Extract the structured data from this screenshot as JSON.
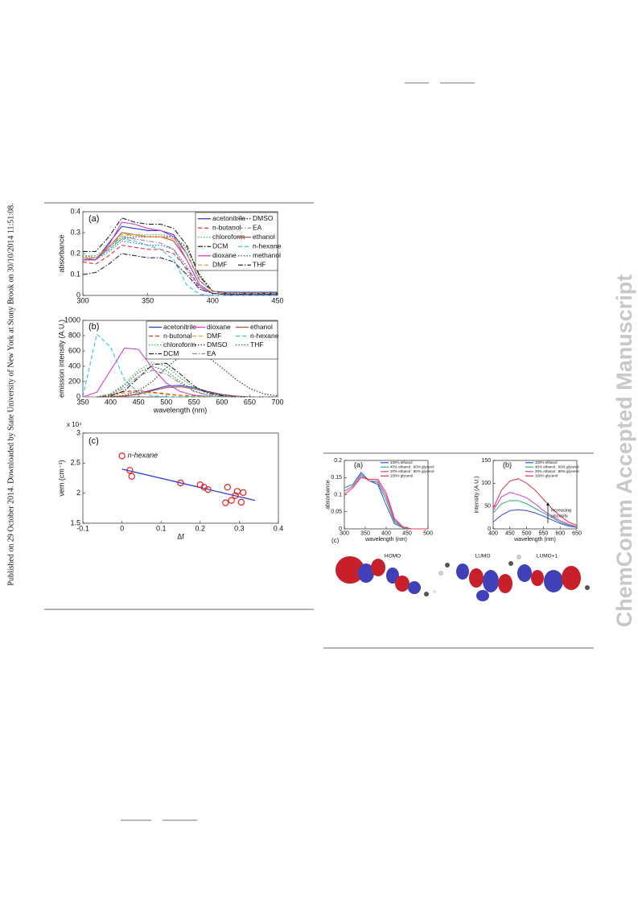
{
  "sidebar": "Published on 29 October 2014. Downloaded by State University of New York at Stony Brook on 30/10/2014 11:51:08.",
  "watermark": "ChemComm Accepted Manuscript",
  "figure1": {
    "panels": [
      {
        "type": "line",
        "label": "(a)",
        "ylabel": "absorbance",
        "xlim": [
          300,
          450
        ],
        "ylim": [
          0,
          0.4
        ],
        "xticks": [
          300,
          350,
          400,
          450
        ],
        "yticks": [
          0,
          0.1,
          0.2,
          0.3,
          0.4
        ],
        "x": [
          300,
          310,
          320,
          330,
          340,
          350,
          360,
          370,
          380,
          390,
          400,
          410,
          420,
          430,
          440,
          450
        ],
        "series": [
          {
            "name": "acetonitrile",
            "color": "#2a3bd6",
            "style": "solid",
            "values": [
              0.17,
              0.17,
              0.25,
              0.33,
              0.32,
              0.31,
              0.31,
              0.29,
              0.2,
              0.07,
              0.02,
              0.015,
              0.015,
              0.015,
              0.015,
              0.015
            ]
          },
          {
            "name": "DMSO",
            "color": "#333333",
            "style": "dotted",
            "values": [
              0.19,
              0.18,
              0.22,
              0.27,
              0.28,
              0.28,
              0.28,
              0.28,
              0.23,
              0.1,
              0.02,
              0.01,
              0.01,
              0.01,
              0.01,
              0.01
            ]
          },
          {
            "name": "n-butanol",
            "color": "#e03030",
            "style": "dashed",
            "values": [
              0.16,
              0.15,
              0.19,
              0.24,
              0.23,
              0.22,
              0.22,
              0.2,
              0.13,
              0.04,
              0.01,
              0.005,
              0.005,
              0.005,
              0.005,
              0.005
            ]
          },
          {
            "name": "EA",
            "color": "#8a8a9a",
            "style": "dashdot",
            "values": [
              0.18,
              0.18,
              0.23,
              0.28,
              0.27,
              0.26,
              0.25,
              0.22,
              0.12,
              0.03,
              0.01,
              0.005,
              0.005,
              0.005,
              0.005,
              0.005
            ]
          },
          {
            "name": "chloroform",
            "color": "#3cb44b",
            "style": "dotted",
            "values": [
              0.19,
              0.19,
              0.23,
              0.28,
              0.29,
              0.29,
              0.29,
              0.28,
              0.22,
              0.09,
              0.02,
              0.01,
              0.01,
              0.01,
              0.01,
              0.01
            ]
          },
          {
            "name": "ethanol",
            "color": "#b5534a",
            "style": "solid",
            "values": [
              0.18,
              0.17,
              0.23,
              0.3,
              0.29,
              0.28,
              0.28,
              0.26,
              0.17,
              0.05,
              0.01,
              0.005,
              0.005,
              0.005,
              0.005,
              0.005
            ]
          },
          {
            "name": "DCM",
            "color": "#222222",
            "style": "dashdot",
            "values": [
              0.21,
              0.21,
              0.28,
              0.37,
              0.35,
              0.34,
              0.34,
              0.32,
              0.24,
              0.09,
              0.02,
              0.01,
              0.01,
              0.01,
              0.01,
              0.01
            ]
          },
          {
            "name": "n-hexane",
            "color": "#30c8d0",
            "style": "dashed",
            "values": [
              0.17,
              0.17,
              0.22,
              0.27,
              0.26,
              0.24,
              0.22,
              0.17,
              0.05,
              0.005,
              0,
              0,
              0,
              0,
              0,
              0
            ]
          },
          {
            "name": "dioxane",
            "color": "#d63cd0",
            "style": "solid",
            "values": [
              0.17,
              0.17,
              0.24,
              0.35,
              0.34,
              0.32,
              0.31,
              0.28,
              0.17,
              0.05,
              0.01,
              0.005,
              0.005,
              0.005,
              0.005,
              0.005
            ]
          },
          {
            "name": "methanol",
            "color": "#3060d0",
            "style": "dotted",
            "values": [
              0.17,
              0.17,
              0.21,
              0.26,
              0.25,
              0.24,
              0.24,
              0.22,
              0.14,
              0.04,
              0.01,
              0.005,
              0.005,
              0.005,
              0.005,
              0.005
            ]
          },
          {
            "name": "DMF",
            "color": "#f0a020",
            "style": "dashed",
            "values": [
              0.18,
              0.18,
              0.23,
              0.29,
              0.29,
              0.28,
              0.28,
              0.27,
              0.2,
              0.07,
              0.02,
              0.01,
              0.01,
              0.01,
              0.01,
              0.01
            ]
          },
          {
            "name": "THF",
            "color": "#2a2a50",
            "style": "dashdot",
            "values": [
              0.1,
              0.11,
              0.15,
              0.2,
              0.19,
              0.18,
              0.18,
              0.16,
              0.1,
              0.03,
              0.01,
              0.005,
              0.005,
              0.005,
              0.005,
              0.005
            ]
          }
        ]
      },
      {
        "type": "line",
        "label": "(b)",
        "xlabel": "wavelength (nm)",
        "ylabel": "emission intensity (A.U.)",
        "xlim": [
          350,
          700
        ],
        "ylim": [
          0,
          1000
        ],
        "xticks": [
          350,
          400,
          450,
          500,
          550,
          600,
          650,
          700
        ],
        "yticks": [
          0,
          200,
          400,
          600,
          800,
          1000
        ],
        "x": [
          350,
          375,
          400,
          425,
          450,
          475,
          500,
          525,
          550,
          575,
          600,
          625,
          650,
          675,
          700
        ],
        "series": [
          {
            "name": "acetonitrile",
            "color": "#2a3bd6",
            "style": "solid",
            "values": [
              0,
              0,
              0,
              10,
              40,
              90,
              140,
              150,
              120,
              70,
              30,
              10,
              0,
              0,
              0
            ]
          },
          {
            "name": "dioxane",
            "color": "#d63cd0",
            "style": "solid",
            "values": [
              0,
              60,
              350,
              640,
              620,
              380,
              180,
              70,
              20,
              5,
              0,
              0,
              0,
              0,
              0
            ]
          },
          {
            "name": "ethanol",
            "color": "#b5534a",
            "style": "solid",
            "values": [
              0,
              0,
              0,
              10,
              35,
              80,
              120,
              130,
              105,
              60,
              25,
              8,
              0,
              0,
              0
            ]
          },
          {
            "name": "n-butonal",
            "color": "#e03030",
            "style": "dashed",
            "values": [
              0,
              0,
              30,
              70,
              80,
              60,
              40,
              20,
              10,
              0,
              0,
              0,
              0,
              0,
              0
            ]
          },
          {
            "name": "DMF",
            "color": "#f0a020",
            "style": "dashed",
            "values": [
              0,
              0,
              20,
              50,
              60,
              50,
              30,
              15,
              5,
              0,
              0,
              0,
              0,
              0,
              0
            ]
          },
          {
            "name": "n-hexane",
            "color": "#30c8d0",
            "style": "dashed",
            "values": [
              0,
              820,
              650,
              220,
              60,
              15,
              0,
              0,
              0,
              0,
              0,
              0,
              0,
              0,
              0
            ]
          },
          {
            "name": "chloroform",
            "color": "#3cb44b",
            "style": "dotted",
            "values": [
              0,
              0,
              40,
              170,
              350,
              450,
              400,
              250,
              120,
              40,
              10,
              0,
              0,
              0,
              0
            ]
          },
          {
            "name": "DMSO",
            "color": "#333333",
            "style": "dotted",
            "values": [
              0,
              0,
              0,
              20,
              80,
              200,
              380,
              530,
              590,
              520,
              380,
              230,
              110,
              40,
              10
            ]
          },
          {
            "name": "THF",
            "color": "#2a7a40",
            "style": "dotted",
            "values": [
              0,
              0,
              30,
              150,
              320,
              400,
              340,
              200,
              80,
              20,
              5,
              0,
              0,
              0,
              0
            ]
          },
          {
            "name": "DCM",
            "color": "#222222",
            "style": "dashdot",
            "values": [
              0,
              0,
              10,
              80,
              250,
              420,
              440,
              300,
              140,
              50,
              15,
              0,
              0,
              0,
              0
            ]
          },
          {
            "name": "EA",
            "color": "#8a8a9a",
            "style": "dashdot",
            "values": [
              0,
              0,
              20,
              120,
              270,
              350,
              300,
              180,
              70,
              20,
              5,
              0,
              0,
              0,
              0
            ]
          }
        ]
      },
      {
        "type": "scatter",
        "label": "(c)",
        "xlabel": "Δf",
        "ylabel": "νem (cm⁻¹)",
        "y_multiplier": "x 10⁴",
        "annotation": "n-hexane",
        "xlim": [
          -0.1,
          0.4
        ],
        "ylim": [
          1.5,
          3
        ],
        "xticks": [
          -0.1,
          0,
          0.1,
          0.2,
          0.3,
          0.4
        ],
        "yticks": [
          1.5,
          2,
          2.5,
          3
        ],
        "color": "#e02020",
        "fit_color": "#2a3bd6",
        "x": [
          0,
          0.02,
          0.025,
          0.15,
          0.2,
          0.21,
          0.22,
          0.265,
          0.27,
          0.28,
          0.29,
          0.295,
          0.305,
          0.31
        ],
        "values": [
          2.62,
          2.38,
          2.28,
          2.17,
          2.14,
          2.1,
          2.06,
          1.84,
          2.1,
          1.88,
          1.96,
          2.03,
          1.85,
          2.01
        ],
        "fit_x": [
          0,
          0.34
        ],
        "fit_values": [
          2.4,
          1.88
        ]
      }
    ]
  },
  "figure2": {
    "panels": [
      {
        "type": "line",
        "label": "(a)",
        "xlabel": "wavelength (nm)",
        "ylabel": "absorbance",
        "xlim": [
          300,
          500
        ],
        "ylim": [
          0,
          0.2
        ],
        "xticks": [
          300,
          350,
          400,
          450,
          500
        ],
        "yticks": [
          0,
          0.05,
          0.1,
          0.15,
          0.2
        ],
        "x": [
          300,
          320,
          340,
          360,
          380,
          400,
          420,
          440,
          460,
          480,
          500
        ],
        "series": [
          {
            "name": "100% ethanol",
            "color": "#4a5ad8",
            "style": "solid",
            "values": [
              0.12,
              0.13,
              0.165,
              0.14,
              0.13,
              0.07,
              0.015,
              0.003,
              0,
              0,
              0
            ]
          },
          {
            "name": "40% ethanol : 60% glycerol",
            "color": "#3cb480",
            "style": "solid",
            "values": [
              0.12,
              0.13,
              0.16,
              0.14,
              0.135,
              0.085,
              0.02,
              0.004,
              0,
              0,
              0
            ]
          },
          {
            "name": "20% ethanol : 80% glycerol",
            "color": "#d050d0",
            "style": "solid",
            "values": [
              0.11,
              0.125,
              0.155,
              0.14,
              0.14,
              0.095,
              0.025,
              0.005,
              0,
              0,
              0
            ]
          },
          {
            "name": "100% glycerol",
            "color": "#e04050",
            "style": "solid",
            "values": [
              0.1,
              0.12,
              0.15,
              0.145,
              0.145,
              0.105,
              0.03,
              0.006,
              0,
              0,
              0
            ]
          }
        ]
      },
      {
        "type": "line",
        "label": "(b)",
        "xlabel": "wavelength (nm)",
        "ylabel": "intensity (A.U.)",
        "annotation": [
          "increasing",
          "viscosity"
        ],
        "xlim": [
          400,
          650
        ],
        "ylim": [
          0,
          150
        ],
        "xticks": [
          400,
          450,
          500,
          550,
          600,
          650
        ],
        "yticks": [
          0,
          50,
          100,
          150
        ],
        "x": [
          400,
          425,
          450,
          475,
          500,
          525,
          550,
          575,
          600,
          625,
          650
        ],
        "series": [
          {
            "name": "100% ethanol",
            "color": "#4a5ad8",
            "style": "solid",
            "values": [
              15,
              30,
              40,
              42,
              40,
              35,
              28,
              20,
              12,
              6,
              3
            ]
          },
          {
            "name": "40% ethanol : 60% glycerol",
            "color": "#3cb480",
            "style": "solid",
            "values": [
              35,
              55,
              62,
              62,
              55,
              45,
              35,
              25,
              15,
              8,
              4
            ]
          },
          {
            "name": "20% ethanol : 80% glycerol",
            "color": "#d050d0",
            "style": "solid",
            "values": [
              40,
              70,
              80,
              75,
              68,
              55,
              40,
              28,
              18,
              10,
              5
            ]
          },
          {
            "name": "100% glycerol",
            "color": "#e04050",
            "style": "solid",
            "values": [
              45,
              85,
              105,
              110,
              100,
              85,
              65,
              45,
              28,
              15,
              8
            ]
          }
        ]
      }
    ],
    "panel_c": {
      "label": "(c)",
      "orbitals": [
        "HOMO",
        "LUMO",
        "LUMO+1"
      ]
    }
  }
}
